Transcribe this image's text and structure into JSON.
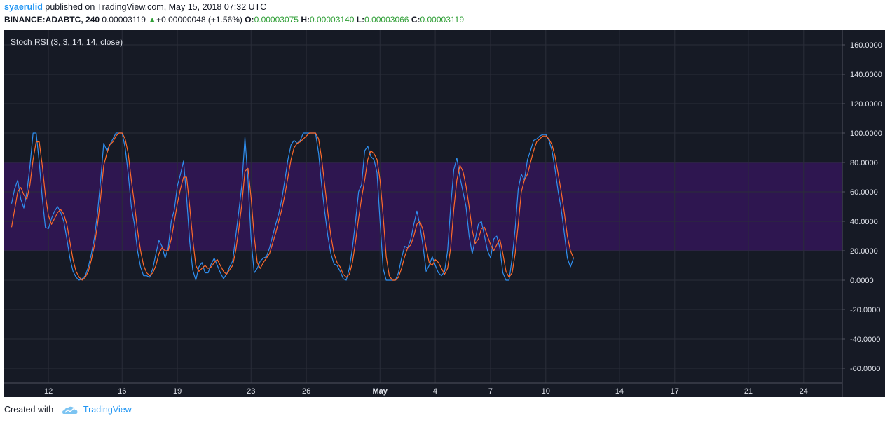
{
  "header": {
    "username": "syaerulid",
    "published_text": "published on TradingView.com, May 15, 2018 07:32 UTC",
    "symbol": "BINANCE:ADABTC, 240",
    "last_price": "0.00003119",
    "change_arrow": "▲",
    "change": "+0.00000048 (+1.56%)",
    "o_label": "O:",
    "o_value": "0.00003075",
    "h_label": "H:",
    "h_value": "0.00003140",
    "l_label": "L:",
    "l_value": "0.00003066",
    "c_label": "C:",
    "c_value": "0.00003119"
  },
  "footer": {
    "created_with": "Created with",
    "brand": "TradingView"
  },
  "colors": {
    "background": "#161a25",
    "band_fill": "#2e1650",
    "grid": "#2a2e39",
    "k_line": "#2f8ff0",
    "d_line": "#ff6a2a",
    "axis_text": "#e0e3eb",
    "up": "#2e9e35",
    "brand": "#2196f3"
  },
  "chart_data": {
    "type": "line",
    "title": "Stoch RSI (3, 3, 14, 14, close)",
    "ylim": [
      -70,
      170
    ],
    "y_ticks": [
      160,
      140,
      120,
      100,
      80,
      60,
      40,
      20,
      0,
      -20,
      -40,
      -60
    ],
    "y_tick_labels": [
      "160.0000",
      "140.0000",
      "120.0000",
      "100.0000",
      "80.0000",
      "60.0000",
      "40.0000",
      "20.0000",
      "0.0000",
      "-20.0000",
      "-40.0000",
      "-60.0000"
    ],
    "band": {
      "upper": 80,
      "lower": 20
    },
    "x_range_days": [
      9.6,
      25.1
    ],
    "x_ticks": [
      {
        "day": 12,
        "label": "12"
      },
      {
        "day": 16,
        "label": "16"
      },
      {
        "day": 19,
        "label": "19"
      },
      {
        "day": 23,
        "label": "23"
      },
      {
        "day": 26,
        "label": "26"
      },
      {
        "day": 30,
        "label": "May"
      },
      {
        "day": 33,
        "label": "4"
      },
      {
        "day": 36,
        "label": "7"
      },
      {
        "day": 39,
        "label": "10"
      },
      {
        "day": 43,
        "label": "14"
      },
      {
        "day": 46,
        "label": "17"
      },
      {
        "day": 50,
        "label": "21"
      },
      {
        "day": 53,
        "label": "24"
      }
    ],
    "bold_x_tick": "May",
    "series": [
      {
        "key": "K",
        "x_start_day": 10.0,
        "step_days": 0.1667,
        "values": [
          52,
          62,
          68,
          55,
          49,
          60,
          78,
          100,
          100,
          80,
          56,
          36,
          35,
          42,
          47,
          50,
          46,
          40,
          28,
          15,
          6,
          2,
          0,
          1,
          3,
          9,
          18,
          29,
          46,
          68,
          93,
          88,
          92,
          96,
          100,
          100,
          100,
          90,
          72,
          50,
          38,
          20,
          9,
          3,
          3,
          2,
          8,
          18,
          27,
          23,
          15,
          22,
          40,
          48,
          64,
          72,
          81,
          56,
          26,
          7,
          0,
          9,
          12,
          5,
          5,
          11,
          15,
          10,
          5,
          1,
          4,
          9,
          13,
          30,
          47,
          65,
          97,
          68,
          28,
          5,
          8,
          13,
          15,
          16,
          22,
          30,
          38,
          45,
          55,
          68,
          82,
          92,
          95,
          93,
          95,
          100,
          100,
          100,
          100,
          100,
          86,
          64,
          46,
          30,
          18,
          11,
          10,
          6,
          1,
          0,
          8,
          22,
          40,
          60,
          65,
          88,
          91,
          84,
          82,
          73,
          40,
          8,
          0,
          0,
          0,
          0,
          5,
          15,
          23,
          22,
          28,
          38,
          47,
          37,
          23,
          6,
          10,
          16,
          10,
          5,
          3,
          6,
          20,
          50,
          75,
          83,
          70,
          60,
          50,
          30,
          18,
          28,
          38,
          40,
          30,
          20,
          15,
          28,
          30,
          22,
          5,
          0,
          0,
          15,
          35,
          62,
          72,
          68,
          82,
          88,
          95,
          96,
          98,
          99,
          99,
          95,
          88,
          75,
          60,
          48,
          32,
          15,
          9,
          15
        ],
        "ylim_hint": [
          0,
          100
        ]
      },
      {
        "key": "D",
        "x_start_day": 10.0,
        "step_days": 0.1667,
        "values": [
          36,
          48,
          60,
          63,
          58,
          55,
          65,
          82,
          94,
          94,
          78,
          58,
          44,
          38,
          42,
          46,
          48,
          45,
          38,
          26,
          14,
          6,
          2,
          0,
          2,
          6,
          14,
          24,
          38,
          56,
          78,
          86,
          92,
          94,
          98,
          100,
          100,
          96,
          86,
          68,
          52,
          34,
          20,
          10,
          5,
          3,
          5,
          10,
          18,
          22,
          20,
          20,
          28,
          40,
          52,
          62,
          70,
          70,
          50,
          28,
          10,
          6,
          8,
          10,
          8,
          9,
          12,
          14,
          10,
          6,
          4,
          7,
          10,
          20,
          35,
          52,
          74,
          76,
          56,
          30,
          12,
          8,
          12,
          15,
          18,
          25,
          32,
          40,
          48,
          58,
          70,
          82,
          90,
          93,
          94,
          96,
          98,
          100,
          100,
          100,
          96,
          82,
          64,
          46,
          30,
          18,
          12,
          9,
          4,
          2,
          4,
          12,
          26,
          42,
          56,
          68,
          82,
          88,
          86,
          82,
          68,
          44,
          16,
          3,
          0,
          0,
          2,
          8,
          16,
          22,
          24,
          30,
          38,
          40,
          34,
          22,
          12,
          10,
          14,
          12,
          8,
          4,
          8,
          22,
          48,
          68,
          78,
          74,
          64,
          50,
          34,
          25,
          28,
          35,
          36,
          30,
          24,
          20,
          24,
          28,
          18,
          6,
          2,
          5,
          18,
          38,
          60,
          68,
          72,
          80,
          88,
          94,
          96,
          98,
          98,
          96,
          92,
          84,
          72,
          60,
          46,
          30,
          20,
          15
        ],
        "ylim_hint": [
          0,
          100
        ]
      }
    ]
  }
}
